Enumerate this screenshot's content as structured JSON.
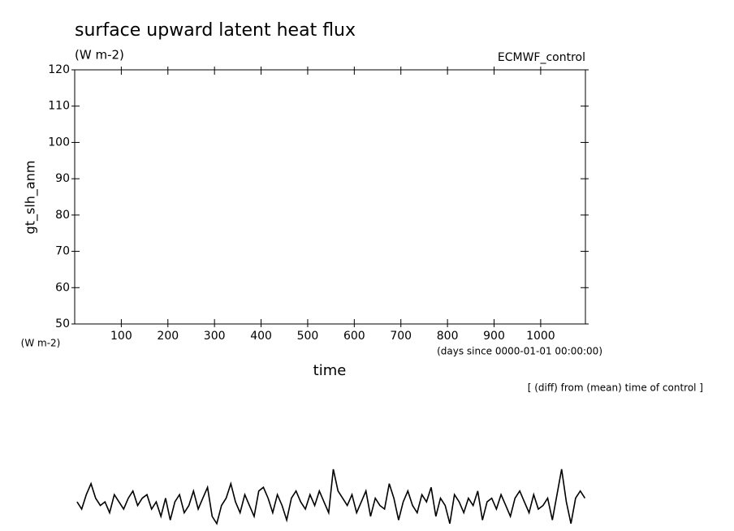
{
  "chart_data": {
    "type": "line",
    "title": "surface upward latent heat flux",
    "subtitle": "(W m-2)",
    "annotation": "ECMWF_control",
    "y_label": "gt_slh_anm",
    "y_units": "(W m-2)",
    "x_units": "(days since 0000-01-01 00:00:00)",
    "x_label": "time",
    "note": "[ (diff) from (mean) time of control ]",
    "xlim": [
      0,
      1096
    ],
    "ylim": [
      50,
      120
    ],
    "xticks": [
      100,
      200,
      300,
      400,
      500,
      600,
      700,
      800,
      900,
      1000
    ],
    "yticks": [
      50,
      60,
      70,
      80,
      90,
      100,
      110,
      120
    ],
    "x": [
      5,
      15,
      25,
      35,
      45,
      55,
      65,
      75,
      85,
      95,
      105,
      115,
      125,
      135,
      145,
      155,
      165,
      175,
      185,
      195,
      205,
      215,
      225,
      235,
      245,
      255,
      265,
      275,
      285,
      295,
      305,
      315,
      325,
      335,
      345,
      355,
      365,
      375,
      385,
      395,
      405,
      415,
      425,
      435,
      445,
      455,
      465,
      475,
      485,
      495,
      505,
      515,
      525,
      535,
      545,
      555,
      565,
      575,
      585,
      595,
      605,
      615,
      625,
      635,
      645,
      655,
      665,
      675,
      685,
      695,
      705,
      715,
      725,
      735,
      745,
      755,
      765,
      775,
      785,
      795,
      805,
      815,
      825,
      835,
      845,
      855,
      865,
      875,
      885,
      895,
      905,
      915,
      925,
      935,
      945,
      955,
      965,
      975,
      985,
      995,
      1005,
      1015,
      1025,
      1035,
      1045,
      1055,
      1065,
      1075,
      1085,
      1095
    ],
    "series": [
      {
        "name": "ECMWF_control",
        "color": "#000000",
        "values": [
          1,
          -1,
          3,
          6,
          2,
          0,
          1,
          -2,
          3,
          1,
          -1,
          2,
          4,
          0,
          2,
          3,
          -1,
          1,
          -3,
          2,
          -4,
          1,
          3,
          -2,
          0,
          4,
          -1,
          2,
          5,
          -3,
          -5,
          0,
          2,
          6,
          1,
          -2,
          3,
          0,
          -3,
          4,
          5,
          2,
          -2,
          3,
          0,
          -4,
          2,
          4,
          1,
          -1,
          3,
          0,
          4,
          1,
          -2,
          10,
          4,
          2,
          0,
          3,
          -2,
          1,
          4,
          -3,
          2,
          0,
          -1,
          6,
          2,
          -4,
          1,
          4,
          0,
          -2,
          3,
          1,
          5,
          -3,
          2,
          0,
          -5,
          3,
          1,
          -2,
          2,
          0,
          4,
          -4,
          1,
          2,
          -1,
          3,
          0,
          -3,
          2,
          4,
          1,
          -2,
          3,
          -1,
          0,
          2,
          -4,
          3,
          10,
          1,
          -5,
          2,
          4,
          2
        ]
      }
    ]
  }
}
